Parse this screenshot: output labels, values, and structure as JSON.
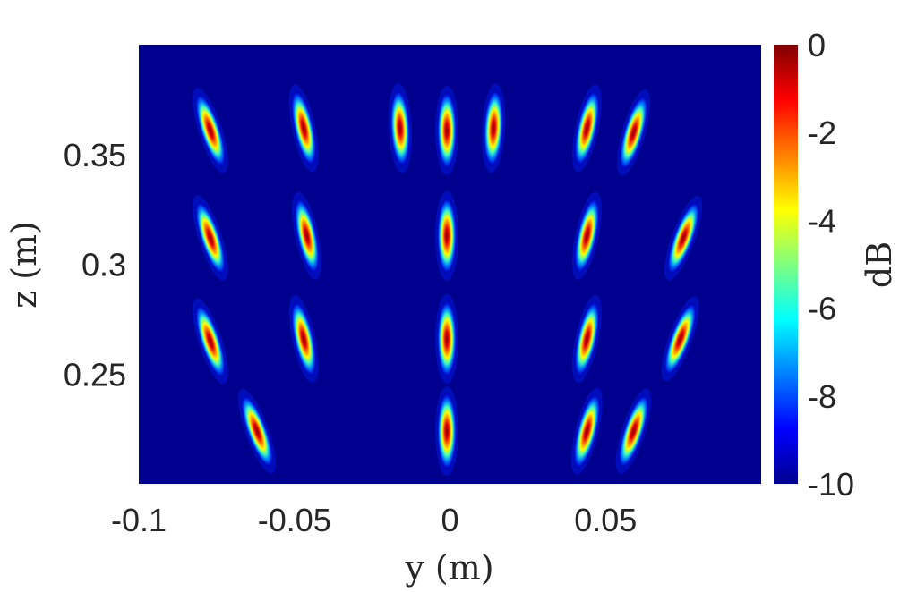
{
  "chart_data": {
    "type": "heatmap",
    "xlabel": "y (m)",
    "ylabel": "z (m)",
    "colorbar_label": "dB",
    "colormap": "jet",
    "xlim": [
      -0.1,
      0.1
    ],
    "ylim": [
      0.2,
      0.4
    ],
    "clim": [
      -10,
      0
    ],
    "x_ticks": [
      -0.1,
      -0.05,
      0,
      0.05
    ],
    "x_tick_labels": [
      "-0.1",
      "-0.05",
      "0",
      "0.05"
    ],
    "y_ticks": [
      0.25,
      0.3,
      0.35
    ],
    "y_tick_labels": [
      "0.25",
      "0.3",
      "0.35"
    ],
    "colorbar_ticks": [
      0,
      -2,
      -4,
      -6,
      -8,
      -10
    ],
    "colorbar_tick_labels": [
      "0",
      "-2",
      "-4",
      "-6",
      "-8",
      "-10"
    ],
    "background_db": -10,
    "peak_db": 0,
    "hotspots": [
      {
        "y": -0.077,
        "z": 0.361,
        "tilt_deg": 18
      },
      {
        "y": -0.047,
        "z": 0.362,
        "tilt_deg": 12
      },
      {
        "y": -0.016,
        "z": 0.362,
        "tilt_deg": 3
      },
      {
        "y": -0.001,
        "z": 0.361,
        "tilt_deg": 0
      },
      {
        "y": 0.014,
        "z": 0.362,
        "tilt_deg": -3
      },
      {
        "y": 0.044,
        "z": 0.362,
        "tilt_deg": -12
      },
      {
        "y": 0.059,
        "z": 0.36,
        "tilt_deg": -16
      },
      {
        "y": -0.077,
        "z": 0.312,
        "tilt_deg": 18
      },
      {
        "y": -0.046,
        "z": 0.313,
        "tilt_deg": 12
      },
      {
        "y": -0.001,
        "z": 0.313,
        "tilt_deg": 0
      },
      {
        "y": 0.044,
        "z": 0.313,
        "tilt_deg": -12
      },
      {
        "y": 0.075,
        "z": 0.312,
        "tilt_deg": -20
      },
      {
        "y": -0.077,
        "z": 0.265,
        "tilt_deg": 18
      },
      {
        "y": -0.047,
        "z": 0.266,
        "tilt_deg": 12
      },
      {
        "y": -0.001,
        "z": 0.266,
        "tilt_deg": 0
      },
      {
        "y": 0.044,
        "z": 0.266,
        "tilt_deg": -12
      },
      {
        "y": 0.074,
        "z": 0.266,
        "tilt_deg": -20
      },
      {
        "y": -0.062,
        "z": 0.224,
        "tilt_deg": 20
      },
      {
        "y": -0.001,
        "z": 0.224,
        "tilt_deg": 0
      },
      {
        "y": 0.044,
        "z": 0.224,
        "tilt_deg": -14
      },
      {
        "y": 0.059,
        "z": 0.224,
        "tilt_deg": -18
      }
    ]
  },
  "colors": {
    "jet_low": "#00008f",
    "jet_high": "#800000"
  }
}
